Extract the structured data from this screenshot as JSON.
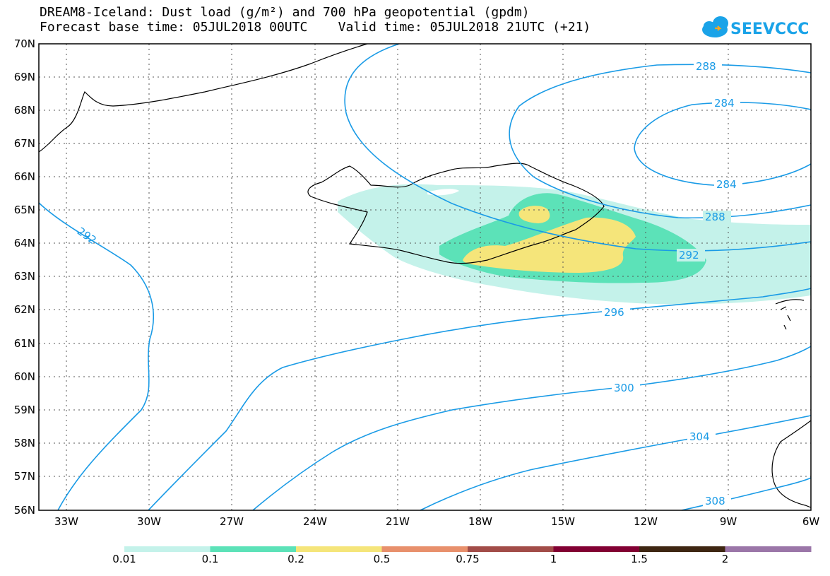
{
  "title_line1": "DREAM8-Iceland: Dust load (g/m²) and 700 hPa geopotential (gpdm)",
  "title_line2": "Forecast base time: 05JUL2018 00UTC    Valid time: 05JUL2018 21UTC (+21)",
  "logo_text": "SEEVCCC",
  "lat_labels": [
    "70N",
    "69N",
    "68N",
    "67N",
    "66N",
    "65N",
    "64N",
    "63N",
    "62N",
    "61N",
    "60N",
    "59N",
    "58N",
    "57N",
    "56N"
  ],
  "lon_labels": [
    "33W",
    "30W",
    "27W",
    "24W",
    "21W",
    "18W",
    "15W",
    "12W",
    "9W",
    "6W"
  ],
  "contour_labels": [
    "288",
    "284",
    "284",
    "288",
    "292",
    "292",
    "296",
    "300",
    "304",
    "308"
  ],
  "colorbar": {
    "labels": [
      "0.01",
      "0.1",
      "0.2",
      "0.5",
      "0.75",
      "1",
      "1.5",
      "2"
    ],
    "colors": [
      "#c4f2ea",
      "#5ce2b8",
      "#f5e57a",
      "#e8906c",
      "#a24c48",
      "#820033",
      "#3e2612",
      "#9b76a8"
    ]
  },
  "colors": {
    "contour": "#1a9be6",
    "dust_low": "#c4f2ea",
    "dust_mid": "#5ce2b8",
    "dust_high": "#f5e57a"
  }
}
